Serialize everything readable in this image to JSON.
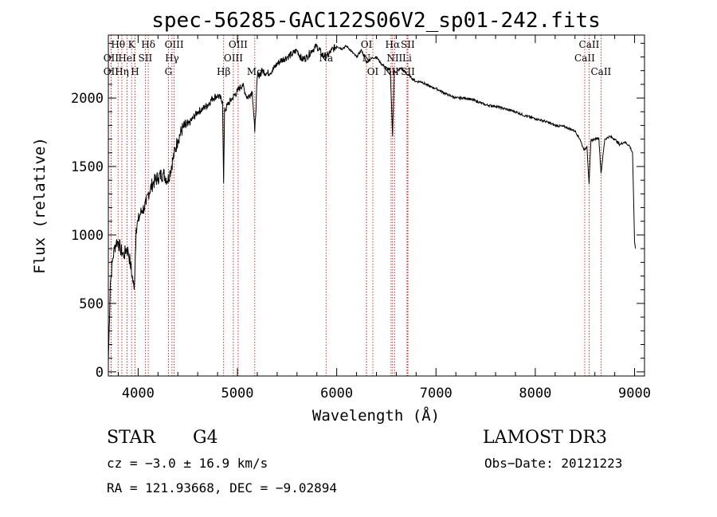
{
  "chart_data": {
    "type": "line",
    "title": "spec-56285-GAC122S06V2_sp01-242.fits",
    "xlabel": "Wavelength (Å)",
    "ylabel": "Flux (relative)",
    "xlim": [
      3700,
      9100
    ],
    "ylim": [
      -30,
      2460
    ],
    "xticks": [
      4000,
      5000,
      6000,
      7000,
      8000,
      9000
    ],
    "yticks": [
      0,
      500,
      1000,
      1500,
      2000
    ],
    "series": [
      {
        "name": "flux",
        "x": [
          3700,
          3720,
          3740,
          3760,
          3780,
          3800,
          3820,
          3840,
          3860,
          3880,
          3900,
          3920,
          3940,
          3960,
          3980,
          4000,
          4020,
          4040,
          4060,
          4080,
          4100,
          4150,
          4200,
          4250,
          4300,
          4350,
          4400,
          4450,
          4500,
          4550,
          4600,
          4650,
          4700,
          4750,
          4800,
          4850,
          4861,
          4870,
          4900,
          4950,
          5000,
          5050,
          5100,
          5150,
          5175,
          5200,
          5250,
          5300,
          5350,
          5400,
          5450,
          5500,
          5550,
          5600,
          5650,
          5700,
          5750,
          5800,
          5850,
          5900,
          5950,
          6000,
          6050,
          6100,
          6150,
          6200,
          6250,
          6300,
          6350,
          6400,
          6450,
          6500,
          6540,
          6563,
          6580,
          6600,
          6650,
          6700,
          6750,
          6800,
          6850,
          6900,
          6950,
          7000,
          7100,
          7200,
          7300,
          7400,
          7500,
          7600,
          7700,
          7800,
          7900,
          8000,
          8100,
          8200,
          8300,
          8400,
          8450,
          8480,
          8498,
          8520,
          8542,
          8560,
          8600,
          8640,
          8662,
          8700,
          8750,
          8800,
          8850,
          8900,
          8950,
          8980,
          9000,
          9010
        ],
        "y": [
          80,
          650,
          800,
          900,
          950,
          950,
          900,
          870,
          850,
          900,
          880,
          800,
          700,
          600,
          1050,
          1100,
          1150,
          1180,
          1200,
          1220,
          1300,
          1380,
          1420,
          1450,
          1400,
          1550,
          1700,
          1780,
          1800,
          1850,
          1900,
          1920,
          1950,
          2000,
          2020,
          1980,
          1380,
          1900,
          1950,
          2000,
          2050,
          2100,
          2000,
          2050,
          1750,
          2150,
          2200,
          2180,
          2200,
          2250,
          2280,
          2300,
          2320,
          2350,
          2280,
          2300,
          2350,
          2380,
          2320,
          2300,
          2350,
          2380,
          2360,
          2380,
          2340,
          2300,
          2350,
          2260,
          2290,
          2300,
          2250,
          2220,
          2200,
          1720,
          2200,
          2190,
          2220,
          2180,
          2150,
          2120,
          2120,
          2100,
          2080,
          2070,
          2030,
          2000,
          2000,
          1980,
          1950,
          1940,
          1920,
          1900,
          1870,
          1850,
          1830,
          1800,
          1790,
          1760,
          1700,
          1640,
          1620,
          1650,
          1370,
          1690,
          1700,
          1710,
          1450,
          1700,
          1720,
          1700,
          1660,
          1680,
          1650,
          1600,
          950,
          900
        ]
      }
    ],
    "lines": [
      {
        "name": "Hθ",
        "w": 3798,
        "row": 0
      },
      {
        "name": "OII",
        "w": 3727,
        "row": 1
      },
      {
        "name": "OII",
        "w": 3727,
        "row": 2
      },
      {
        "name": "Hη",
        "w": 3836,
        "row": 2
      },
      {
        "name": "HeI",
        "w": 3889,
        "row": 1
      },
      {
        "name": "K",
        "w": 3934,
        "row": 0
      },
      {
        "name": "H",
        "w": 3969,
        "row": 2
      },
      {
        "name": "SII",
        "w": 4072,
        "row": 1
      },
      {
        "name": "Hδ",
        "w": 4102,
        "row": 0
      },
      {
        "name": "OIII",
        "w": 4363,
        "row": 0
      },
      {
        "name": "Hγ",
        "w": 4341,
        "row": 1
      },
      {
        "name": "G",
        "w": 4305,
        "row": 2
      },
      {
        "name": "Hβ",
        "w": 4861,
        "row": 2
      },
      {
        "name": "OIII",
        "w": 4959,
        "row": 1
      },
      {
        "name": "OIII",
        "w": 5007,
        "row": 0
      },
      {
        "name": "Mg",
        "w": 5175,
        "row": 2
      },
      {
        "name": "Na",
        "w": 5893,
        "row": 1
      },
      {
        "name": "OI",
        "w": 6300,
        "row": 0
      },
      {
        "name": "N",
        "w": 6300,
        "row": 1
      },
      {
        "name": "OI",
        "w": 6364,
        "row": 2
      },
      {
        "name": "NII",
        "w": 6548,
        "row": 2
      },
      {
        "name": "Hα",
        "w": 6563,
        "row": 0
      },
      {
        "name": "NII",
        "w": 6583,
        "row": 1
      },
      {
        "name": "SII",
        "w": 6717,
        "row": 2
      },
      {
        "name": "SII",
        "w": 6716,
        "row": 0
      },
      {
        "name": "Li",
        "w": 6708,
        "row": 1
      },
      {
        "name": "CaII",
        "w": 8498,
        "row": 1
      },
      {
        "name": "CaII",
        "w": 8542,
        "row": 0
      },
      {
        "name": "CaII",
        "w": 8662,
        "row": 2
      }
    ],
    "colors": {
      "axis": "#000000",
      "spectrum": "#000000",
      "line_marker": "#c00000"
    }
  },
  "info": {
    "class": "STAR",
    "subclass": "G4",
    "survey": "LAMOST DR3",
    "cz": "cz = −3.0 ± 16.9 km/s",
    "obs_date": "Obs−Date: 20121223",
    "coords": "RA = 121.93668, DEC =  −9.02894"
  }
}
